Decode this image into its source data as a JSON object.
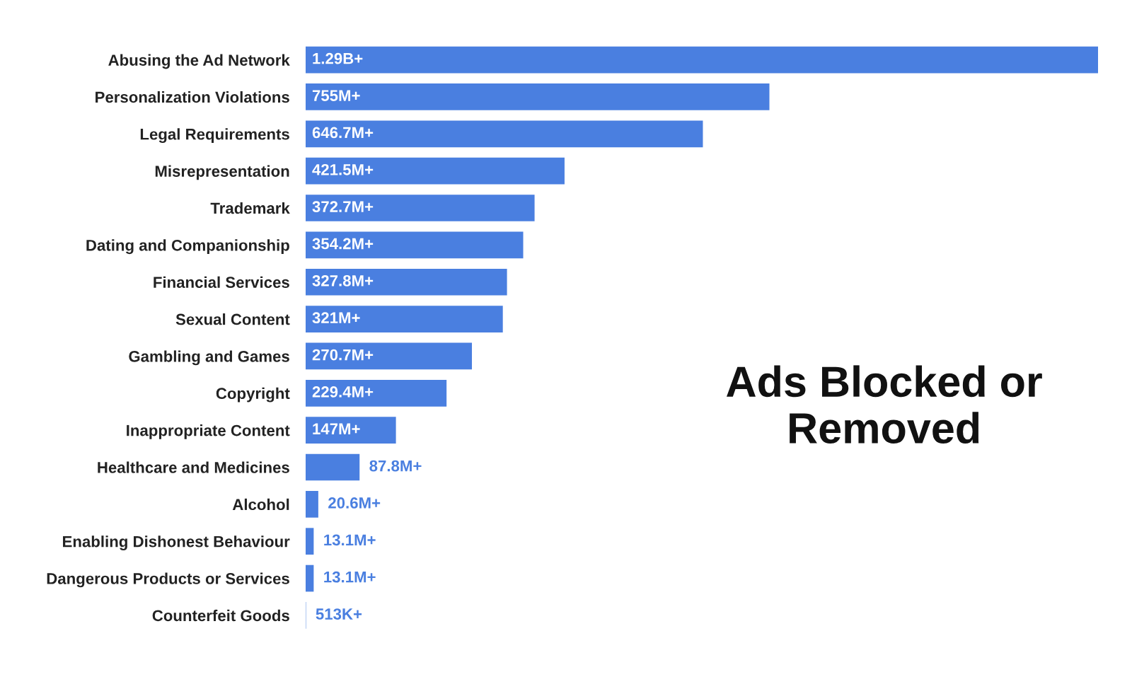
{
  "chart_data": {
    "type": "bar",
    "orientation": "horizontal",
    "title": "Ads Blocked or Removed",
    "categories": [
      "Abusing the Ad Network",
      "Personalization Violations",
      "Legal Requirements",
      "Misrepresentation",
      "Trademark",
      "Dating and Companionship",
      "Financial Services",
      "Sexual Content",
      "Gambling and Games",
      "Copyright",
      "Inappropriate Content",
      "Healthcare and Medicines",
      "Alcohol",
      "Enabling Dishonest Behaviour",
      "Dangerous Products or Services",
      "Counterfeit Goods"
    ],
    "values": [
      1290000000,
      755000000,
      646700000,
      421500000,
      372700000,
      354200000,
      327800000,
      321000000,
      270700000,
      229400000,
      147000000,
      87800000,
      20600000,
      13100000,
      13100000,
      513000
    ],
    "value_labels": [
      "1.29B+",
      "755M+",
      "646.7M+",
      "421.5M+",
      "372.7M+",
      "354.2M+",
      "327.8M+",
      "321M+",
      "270.7M+",
      "229.4M+",
      "147M+",
      "87.8M+",
      "20.6M+",
      "13.1M+",
      "13.1M+",
      "513K+"
    ],
    "color": "#4a7fe0",
    "grid": false,
    "legend": false
  }
}
